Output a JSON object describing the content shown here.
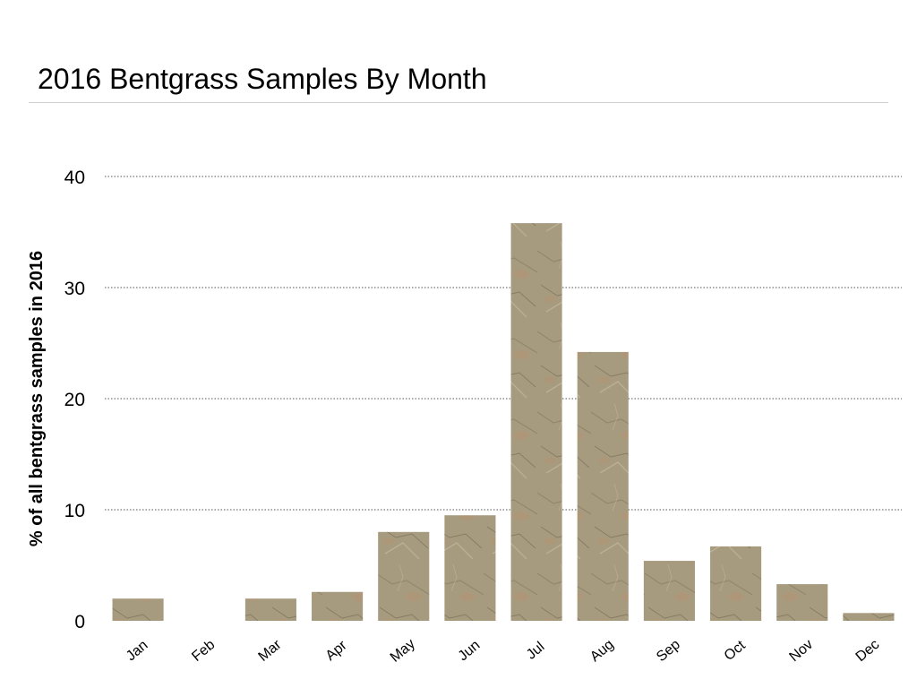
{
  "chart_data": {
    "type": "bar",
    "title": "2016 Bentgrass Samples By Month",
    "xlabel": "",
    "ylabel": "% of all bentgrass samples in 2016",
    "categories": [
      "Jan",
      "Feb",
      "Mar",
      "Apr",
      "May",
      "Jun",
      "Jul",
      "Aug",
      "Sep",
      "Oct",
      "Nov",
      "Dec"
    ],
    "values": [
      2.0,
      0,
      2.0,
      2.6,
      8.0,
      9.5,
      35.8,
      24.2,
      5.4,
      6.7,
      3.3,
      0.7
    ],
    "ylim": [
      0,
      40
    ],
    "yticks": [
      "0",
      "10",
      "20",
      "30",
      "40"
    ],
    "grid": true,
    "legend": "none",
    "colors": {
      "bar_fill": "#a69b7e",
      "bar_light": "#c3b89b",
      "bar_dark": "#857a60",
      "bar_vein": "#5f5443",
      "bar_rust": "#c98a66",
      "gridline": "#555555",
      "title_rule": "#cfcfcf"
    }
  }
}
